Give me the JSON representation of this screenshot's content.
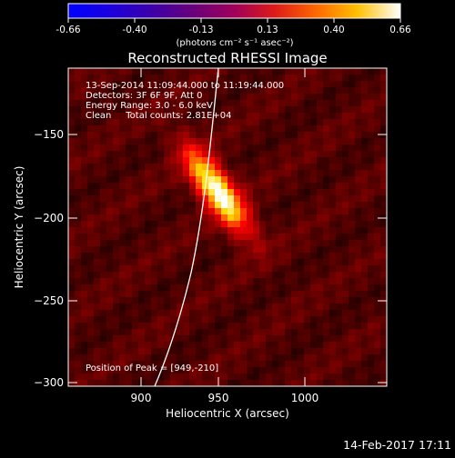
{
  "colorbar": {
    "ticks": [
      "-0.66",
      "-0.40",
      "-0.13",
      "0.13",
      "0.40",
      "0.66"
    ],
    "unit": "(photons cm⁻² s⁻¹ asec⁻²)",
    "range": [
      -0.66,
      0.66
    ]
  },
  "chart_data": {
    "type": "heatmap",
    "title": "Reconstructed RHESSI Image",
    "xlabel": "Heliocentric X (arcsec)",
    "ylabel": "Heliocentric Y (arcsec)",
    "xlim": [
      860,
      1050
    ],
    "ylim": [
      -302,
      -152
    ],
    "xticks": [
      900,
      950,
      1000
    ],
    "yticks": [
      -150,
      -200,
      -250,
      -300
    ],
    "xtick_labels": [
      "900",
      "950",
      "1000"
    ],
    "ytick_labels": [
      "−150",
      "−200",
      "−250",
      "−300"
    ],
    "annotations": [
      "13-Sep-2014 11:09:44.000 to 11:19:44.000",
      "Detectors: 3F 6F 9F, Att 0",
      "Energy Range: 3.0 - 6.0 keV",
      "Clean     Total counts: 2.81E+04"
    ],
    "peak_label": "Position of Peak = [949,-210]",
    "peak": [
      949,
      -210
    ],
    "limb_visible": true,
    "colormap": "hot"
  },
  "timestamp": "14-Feb-2017 17:11"
}
